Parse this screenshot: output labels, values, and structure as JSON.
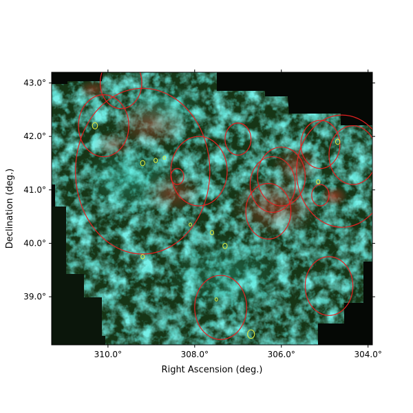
{
  "chart_data": {
    "type": "scatter",
    "xlabel": "Right Ascension (deg.)",
    "ylabel": "Declination (deg.)",
    "xlim": [
      311.3,
      303.9
    ],
    "ylim": [
      38.1,
      43.2
    ],
    "x_ticks": [
      310.0,
      308.0,
      306.0,
      304.0
    ],
    "x_tick_labels": [
      "310.0°",
      "308.0°",
      "306.0°",
      "304.0°"
    ],
    "y_ticks": [
      39.0,
      40.0,
      41.0,
      42.0,
      43.0
    ],
    "y_tick_labels": [
      "39.0°",
      "40.0°",
      "41.0°",
      "42.0°",
      "43.0°"
    ],
    "grid": false,
    "background_colors": {
      "image_base": "#0d1a0d",
      "filament": "#2fd9c8",
      "emission": "#c83a2a",
      "dark": "#050805"
    },
    "series": [
      {
        "marker": "circle-outline",
        "color": "#e52020",
        "points": [
          {
            "x": 309.7,
            "y": 43.0,
            "r": 0.48
          },
          {
            "x": 309.2,
            "y": 41.35,
            "r": 1.55
          },
          {
            "x": 310.1,
            "y": 42.2,
            "r": 0.58
          },
          {
            "x": 307.9,
            "y": 41.35,
            "r": 0.65
          },
          {
            "x": 306.2,
            "y": 41.1,
            "r": 0.52
          },
          {
            "x": 306.3,
            "y": 40.6,
            "r": 0.52
          },
          {
            "x": 306.0,
            "y": 41.25,
            "r": 0.55
          },
          {
            "x": 304.6,
            "y": 41.35,
            "r": 1.05
          },
          {
            "x": 304.35,
            "y": 41.65,
            "r": 0.55
          },
          {
            "x": 305.1,
            "y": 41.85,
            "r": 0.45
          },
          {
            "x": 304.9,
            "y": 39.2,
            "r": 0.55
          },
          {
            "x": 307.4,
            "y": 38.8,
            "r": 0.6
          },
          {
            "x": 307.0,
            "y": 41.95,
            "r": 0.3
          },
          {
            "x": 305.1,
            "y": 40.9,
            "r": 0.2
          },
          {
            "x": 308.4,
            "y": 41.25,
            "r": 0.15
          }
        ]
      },
      {
        "marker": "circle-outline",
        "color": "#e8f03a",
        "points": [
          {
            "x": 310.3,
            "y": 42.2,
            "r": 0.06
          },
          {
            "x": 309.2,
            "y": 41.5,
            "r": 0.05
          },
          {
            "x": 308.9,
            "y": 41.55,
            "r": 0.04
          },
          {
            "x": 304.7,
            "y": 41.9,
            "r": 0.05
          },
          {
            "x": 305.15,
            "y": 41.15,
            "r": 0.04
          },
          {
            "x": 307.3,
            "y": 39.95,
            "r": 0.05
          },
          {
            "x": 309.2,
            "y": 39.75,
            "r": 0.04
          },
          {
            "x": 307.6,
            "y": 40.2,
            "r": 0.04
          },
          {
            "x": 308.1,
            "y": 40.35,
            "r": 0.03
          },
          {
            "x": 307.5,
            "y": 38.95,
            "r": 0.03
          },
          {
            "x": 306.7,
            "y": 38.3,
            "r": 0.08
          },
          {
            "x": 308.7,
            "y": 41.6,
            "r": 0.03
          }
        ]
      }
    ]
  }
}
